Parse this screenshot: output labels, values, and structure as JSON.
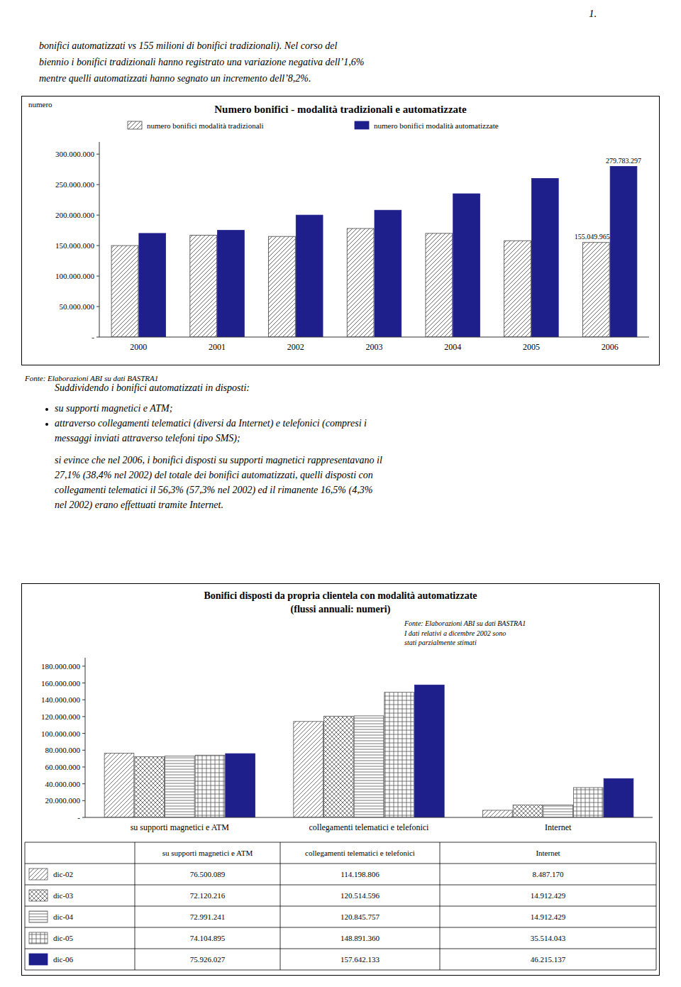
{
  "page_number": "1.",
  "intro": [
    "bonifici automatizzati vs 155 milioni di bonifici tradizionali).   Nel corso del",
    "biennio i bonifici tradizionali hanno registrato una variazione negativa dell’1,6%",
    "mentre quelli automatizzati hanno segnato un incremento dell’8,2%."
  ],
  "lead": "Suddividendo i bonifici automatizzati in disposti:",
  "bullets": [
    [
      "su supporti magnetici e ATM;"
    ],
    [
      "attraverso collegamenti telematici (diversi da Internet) e telefonici (compresi i",
      "messaggi inviati attraverso telefoni tipo SMS);"
    ]
  ],
  "paragraph": [
    "si evince che nel 2006, i bonifici disposti su supporti magnetici rappresentavano il",
    "27,1% (38,4% nel 2002) del totale dei bonifici automatizzati, quelli disposti con",
    "collegamenti telematici il 56,3% (57,3% nel 2002) ed il rimanente 16,5% (4,3%",
    "nel 2002) erano effettuati tramite Internet."
  ],
  "chart_data": [
    {
      "type": "bar",
      "title": "Numero bonifici - modalità tradizionali e automatizzate",
      "ylabel": "numero",
      "source": "Fonte: Elaborazioni ABI su dati BASTRA1",
      "categories": [
        "2000",
        "2001",
        "2002",
        "2003",
        "2004",
        "2005",
        "2006"
      ],
      "series": [
        {
          "name": "numero bonifici modalità tradizionali",
          "color": "#444444",
          "values": [
            150000000,
            167000000,
            165000000,
            178000000,
            170000000,
            158000000,
            155049965
          ],
          "value_labels": [
            null,
            null,
            null,
            null,
            null,
            null,
            "155.049.965"
          ]
        },
        {
          "name": "numero bonifici modalità automatizzate",
          "color": "#1F1F8C",
          "values": [
            170000000,
            175000000,
            200000000,
            208000000,
            235000000,
            260000000,
            279783297
          ],
          "value_labels": [
            null,
            null,
            null,
            null,
            null,
            null,
            "279.783.297"
          ]
        }
      ],
      "ylim": [
        0,
        320000000
      ],
      "yticks": [
        {
          "value": 0,
          "label": "-"
        },
        {
          "value": 50000000,
          "label": "50.000.000"
        },
        {
          "value": 100000000,
          "label": "100.000.000"
        },
        {
          "value": 150000000,
          "label": "150.000.000"
        },
        {
          "value": 200000000,
          "label": "200.000.000"
        },
        {
          "value": 250000000,
          "label": "250.000.000"
        },
        {
          "value": 300000000,
          "label": "300.000.000"
        }
      ],
      "grid": false,
      "legend": "upper left"
    },
    {
      "type": "bar",
      "title": "Bonifici disposti da propria clientela con modalità automatizzate",
      "subtitle": "(flussi annuali: numeri)",
      "source": "Fonte: Elaborazioni ABI su dati BASTRA1",
      "note": [
        "I dati relativi a dicembre 2002 sono",
        "stati parzialmente stimati"
      ],
      "categories": [
        "su supporti magnetici e ATM",
        "collegamenti telematici e telefonici",
        "Internet"
      ],
      "series": [
        {
          "name": "dic-02",
          "color": "#555555",
          "values": [
            76500089,
            114198806,
            8487170
          ]
        },
        {
          "name": "dic-03",
          "color": "#555555",
          "values": [
            72120216,
            120514596,
            14912429
          ]
        },
        {
          "name": "dic-04",
          "color": "#555555",
          "values": [
            72991241,
            120845757,
            14912429
          ]
        },
        {
          "name": "dic-05",
          "color": "#555555",
          "values": [
            74104895,
            148891360,
            35514043
          ]
        },
        {
          "name": "dic-06",
          "color": "#1F1F8C",
          "values": [
            75926027,
            157642133,
            46215137
          ]
        }
      ],
      "ylim": [
        0,
        190000000
      ],
      "yticks": [
        {
          "value": 0,
          "label": "-"
        },
        {
          "value": 20000000,
          "label": "20.000.000"
        },
        {
          "value": 40000000,
          "label": "40.000.000"
        },
        {
          "value": 60000000,
          "label": "60.000.000"
        },
        {
          "value": 80000000,
          "label": "80.000.000"
        },
        {
          "value": 100000000,
          "label": "100.000.000"
        },
        {
          "value": 120000000,
          "label": "120.000.000"
        },
        {
          "value": 140000000,
          "label": "140.000.000"
        },
        {
          "value": 160000000,
          "label": "160.000.000"
        },
        {
          "value": 180000000,
          "label": "180.000.000"
        }
      ],
      "grid": false
    }
  ],
  "table": {
    "rows": [
      [
        "76.500.089",
        "114.198.806",
        "8.487.170"
      ],
      [
        "72.120.216",
        "120.514.596",
        "14.912.429"
      ],
      [
        "72.991.241",
        "120.845.757",
        "14.912.429"
      ],
      [
        "74.104.895",
        "148.891.360",
        "35.514.043"
      ],
      [
        "75.926.027",
        "157.642.133",
        "46.215.137"
      ]
    ]
  }
}
